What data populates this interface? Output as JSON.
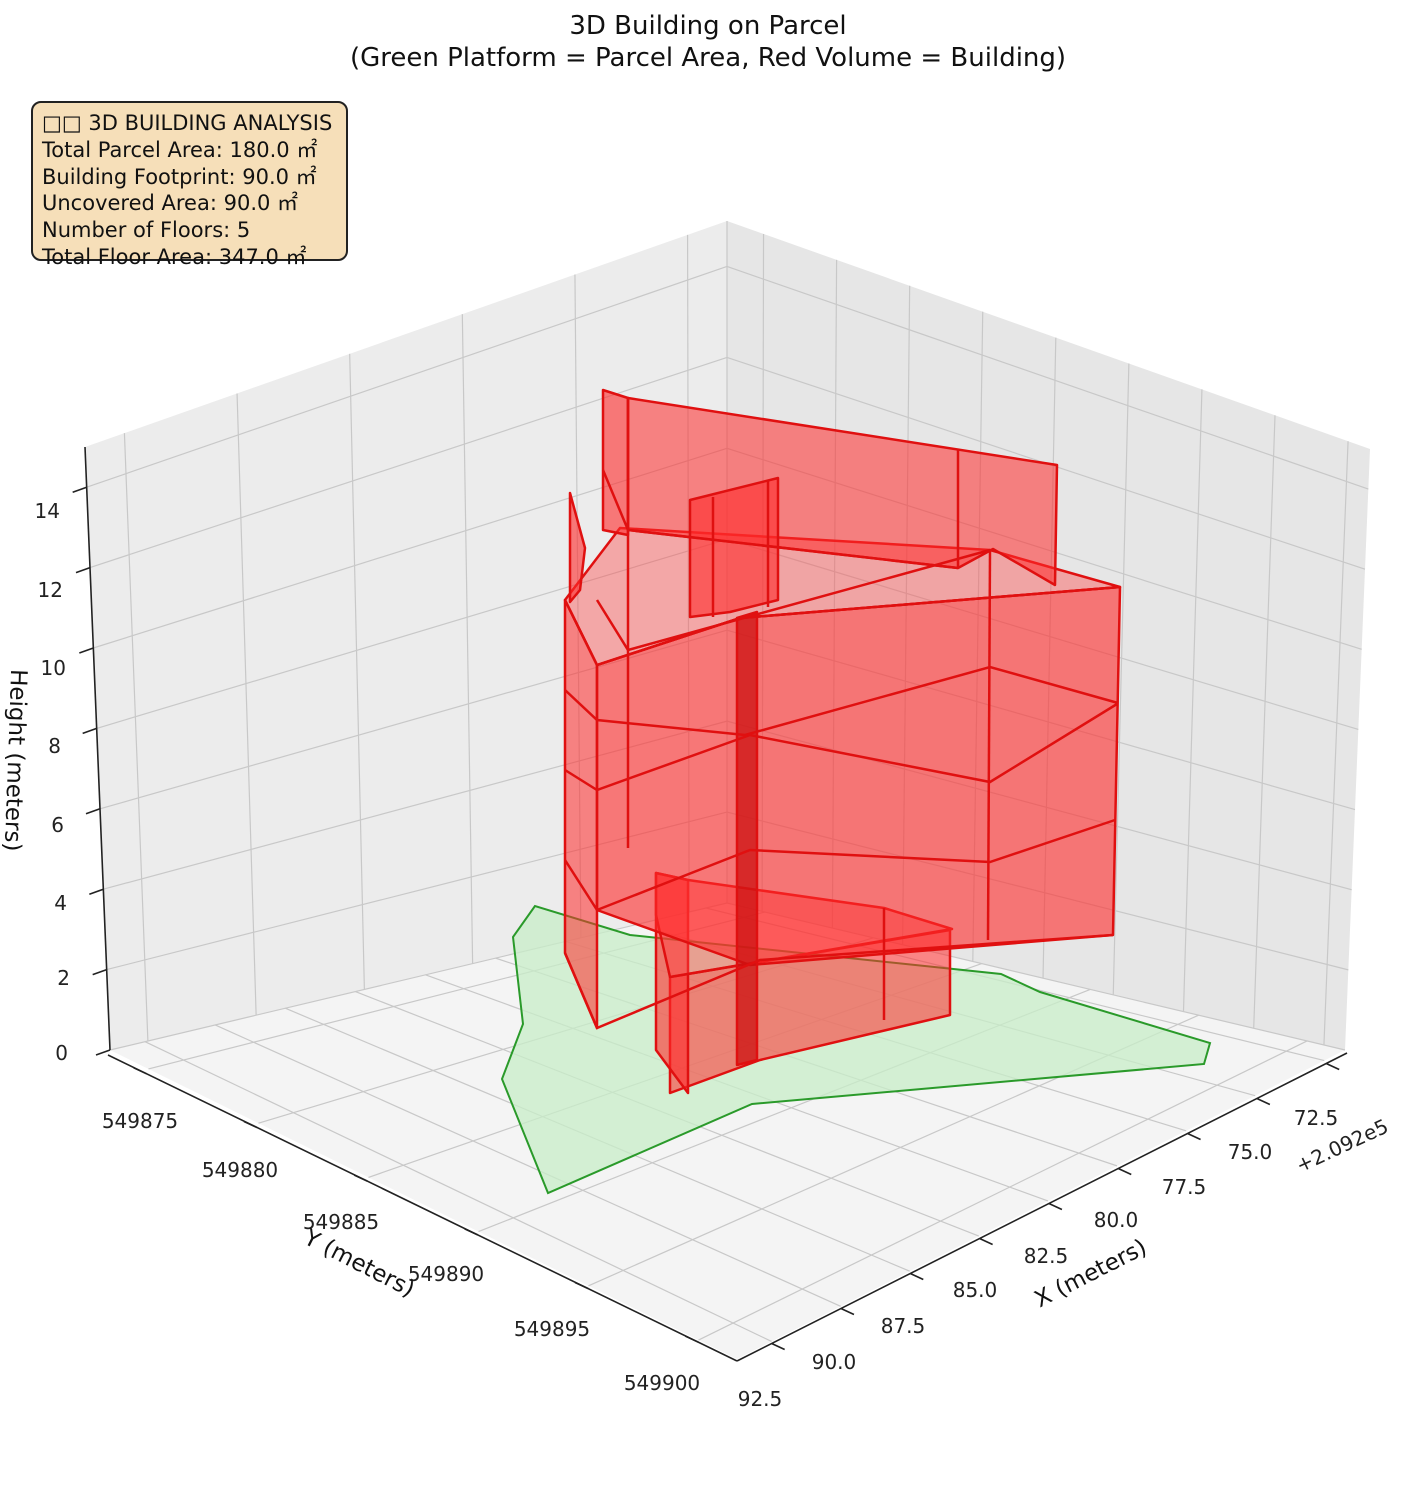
{
  "title": {
    "line1": "3D Building on Parcel",
    "line2": "(Green Platform = Parcel Area, Red Volume = Building)"
  },
  "info_box": {
    "heading": "□□ 3D BUILDING ANALYSIS",
    "parcel_area": "Total Parcel Area: 180.0 ㎡",
    "footprint": "Building Footprint: 90.0 ㎡",
    "uncovered": "Uncovered Area: 90.0 ㎡",
    "floors": "Number of Floors: 5",
    "floor_area": "Total Floor Area: 347.0 ㎡"
  },
  "colors": {
    "building_edge": "#e01010",
    "building_fill": "#ff2020",
    "parcel_edge": "#2a9a2a",
    "parcel_fill": "#c8eec8",
    "pane_fill": "#f2f2f2",
    "grid": "#c8c8c8",
    "info_box_bg": "#f6dfb9"
  },
  "chart_data": {
    "type": "3d-polygon",
    "xlabel": "X (meters)",
    "ylabel": "Y (meters)",
    "zlabel": "Height (meters)",
    "x_offset_label": "+2.092e5",
    "x_ticks": [
      "72.5",
      "75.0",
      "77.5",
      "80.0",
      "82.5",
      "85.0",
      "87.5",
      "90.0",
      "92.5"
    ],
    "y_ticks": [
      "549875",
      "549880",
      "549885",
      "549890",
      "549895",
      "549900"
    ],
    "z_ticks": [
      "0",
      "2",
      "4",
      "6",
      "8",
      "10",
      "12",
      "14"
    ],
    "z_range": [
      0,
      15
    ],
    "grid": true,
    "series": [
      {
        "name": "Parcel Area",
        "shape": "platform",
        "height": 0
      },
      {
        "name": "Building",
        "shape": "extruded volume",
        "floors": 5
      }
    ]
  }
}
